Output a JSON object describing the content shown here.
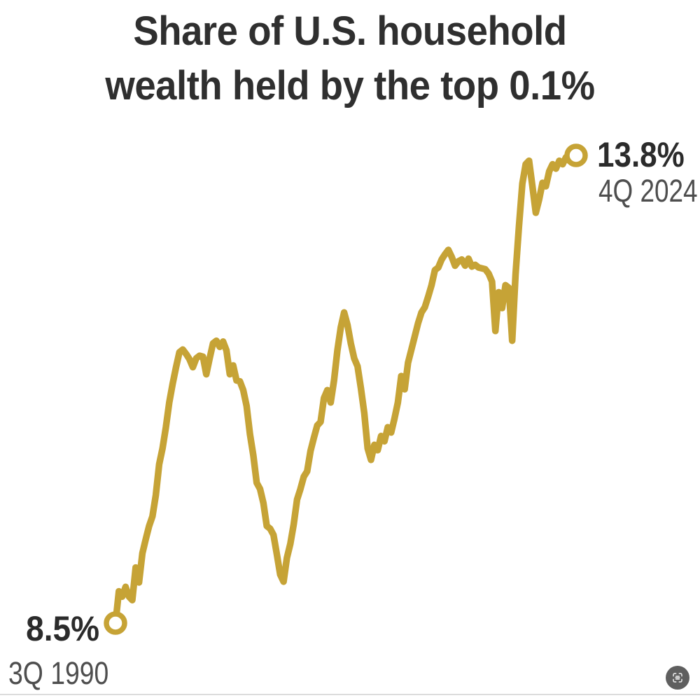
{
  "title": {
    "line1": "Share of U.S. household",
    "line2": "wealth held by the top 0.1%"
  },
  "annotations": {
    "end": {
      "value_label": "13.8%",
      "period_label": "4Q 2024"
    },
    "start": {
      "value_label": "8.5%",
      "period_label": "3Q 1990"
    }
  },
  "icons": {
    "bottom_right": "scan-text-icon"
  },
  "colors": {
    "line": "#C6A336",
    "marker_fill": "#ffffff",
    "title_text": "#2f2f2f",
    "value_text": "#2b2b2b",
    "period_text": "#4e4e4e",
    "scan_button_bg": "#4a4a4a",
    "bottom_rule": "#dcdcdc"
  },
  "chart_data": {
    "type": "line",
    "title": "Share of U.S. household wealth held by the top 0.1%",
    "unit": "percent",
    "frequency": "quarterly",
    "x_start": "1990-Q3",
    "x_end": "2024-Q4",
    "first_point": {
      "label": "3Q 1990",
      "value": 8.5
    },
    "last_point": {
      "label": "4Q 2024",
      "value": 13.8
    },
    "ylim": [
      8.2,
      14.1
    ],
    "grid": false,
    "axes_hidden": true,
    "legend": "none",
    "values": [
      8.5,
      8.86,
      8.8,
      8.91,
      8.8,
      8.76,
      9.13,
      8.96,
      9.29,
      9.45,
      9.6,
      9.71,
      9.95,
      10.3,
      10.48,
      10.72,
      11.0,
      11.21,
      11.4,
      11.57,
      11.6,
      11.55,
      11.49,
      11.4,
      11.5,
      11.53,
      11.52,
      11.32,
      11.5,
      11.67,
      11.7,
      11.63,
      11.69,
      11.59,
      11.32,
      11.42,
      11.25,
      11.24,
      11.14,
      10.96,
      10.64,
      10.4,
      10.09,
      10.02,
      9.86,
      9.6,
      9.57,
      9.5,
      9.28,
      9.05,
      8.97,
      9.24,
      9.4,
      9.62,
      9.9,
      10.02,
      10.16,
      10.22,
      10.45,
      10.6,
      10.74,
      10.78,
      11.05,
      11.14,
      11.0,
      11.25,
      11.59,
      11.85,
      12.02,
      11.88,
      11.67,
      11.5,
      11.41,
      11.16,
      10.88,
      10.48,
      10.35,
      10.52,
      10.46,
      10.62,
      10.56,
      10.72,
      10.66,
      10.82,
      11.0,
      11.3,
      11.15,
      11.45,
      11.6,
      11.75,
      11.9,
      12.02,
      12.08,
      12.2,
      12.33,
      12.5,
      12.53,
      12.62,
      12.68,
      12.73,
      12.65,
      12.55,
      12.6,
      12.62,
      12.55,
      12.63,
      12.54,
      12.56,
      12.53,
      12.52,
      12.51,
      12.46,
      12.37,
      11.81,
      12.25,
      12.07,
      12.33,
      12.3,
      11.7,
      12.45,
      13.0,
      13.48,
      13.7,
      13.74,
      13.45,
      13.15,
      13.3,
      13.49,
      13.45,
      13.62,
      13.7,
      13.65,
      13.74,
      13.7,
      13.78,
      13.74,
      13.81,
      13.8
    ]
  }
}
